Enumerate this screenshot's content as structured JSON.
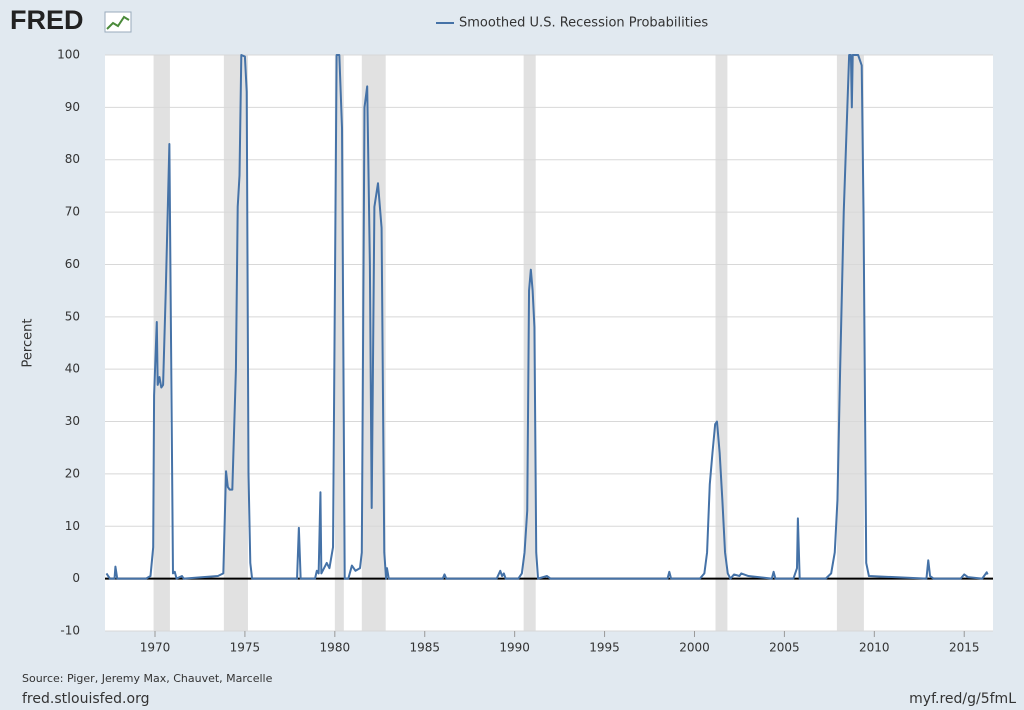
{
  "logo": "FRED",
  "chart_data": {
    "type": "line",
    "y_label": "Percent",
    "source": "Source: Piger, Jeremy Max, Chauvet, Marcelle",
    "legend": "top",
    "grid": true,
    "x": [
      1967.3,
      1967.5,
      1967.75,
      1967.8,
      1967.9,
      1969.5,
      1969.75,
      1969.9,
      1969.95,
      1970.1,
      1970.15,
      1970.25,
      1970.35,
      1970.45,
      1970.6,
      1970.8,
      1971.0,
      1971.1,
      1971.2,
      1971.5,
      1971.6,
      1973.5,
      1973.8,
      1973.95,
      1974.05,
      1974.15,
      1974.3,
      1974.5,
      1974.6,
      1974.7,
      1974.8,
      1975.0,
      1975.1,
      1975.2,
      1975.3,
      1975.4,
      1977.9,
      1978.0,
      1978.1,
      1978.9,
      1979.0,
      1979.1,
      1979.2,
      1979.25,
      1979.4,
      1979.55,
      1979.7,
      1979.9,
      1980.1,
      1980.25,
      1980.4,
      1980.55,
      1980.75,
      1980.95,
      1981.05,
      1981.15,
      1981.4,
      1981.5,
      1981.65,
      1981.8,
      1981.95,
      1982.05,
      1982.2,
      1982.4,
      1982.6,
      1982.75,
      1982.85,
      1982.9,
      1983.0,
      1986.0,
      1986.1,
      1986.2,
      1989.0,
      1989.2,
      1989.3,
      1989.4,
      1989.5,
      1990.2,
      1990.4,
      1990.55,
      1990.7,
      1990.8,
      1990.9,
      1991.0,
      1991.1,
      1991.2,
      1991.3,
      1991.8,
      1992.0,
      1998.5,
      1998.6,
      1998.7,
      2000.3,
      2000.55,
      2000.7,
      2000.85,
      2001.0,
      2001.15,
      2001.25,
      2001.4,
      2001.55,
      2001.7,
      2001.85,
      2002.0,
      2002.2,
      2002.5,
      2002.6,
      2003.0,
      2004.3,
      2004.4,
      2004.5,
      2005.5,
      2005.7,
      2005.75,
      2005.85,
      2007.3,
      2007.6,
      2007.8,
      2007.95,
      2008.1,
      2008.3,
      2008.5,
      2008.6,
      2008.7,
      2008.75,
      2008.8,
      2009.1,
      2009.3,
      2009.4,
      2009.55,
      2009.7,
      2012.9,
      2013.0,
      2013.1,
      2013.3,
      2014.8,
      2015.0,
      2015.2,
      2016.0,
      2016.25,
      2016.3
    ],
    "series": [
      {
        "name": "Smoothed U.S. Recession Probabilities",
        "color": "#4572a7",
        "values": [
          1,
          0,
          0,
          2.3,
          0,
          0,
          0.5,
          6,
          35,
          49,
          37,
          38.5,
          36.5,
          37,
          55,
          83,
          1,
          1.3,
          0,
          0.5,
          0,
          0.5,
          1,
          20.5,
          17.5,
          17,
          17,
          40,
          71,
          77,
          100,
          99.7,
          93,
          20,
          3,
          0,
          0,
          9.7,
          0,
          0,
          1.5,
          1,
          16.5,
          1,
          2,
          3,
          2,
          6,
          100,
          100,
          86,
          0,
          0,
          2.5,
          2,
          1.5,
          2,
          5,
          90,
          94,
          60,
          13.5,
          71,
          75.5,
          67,
          5,
          0,
          2,
          0,
          0,
          0.8,
          0,
          0,
          1.5,
          0.5,
          1,
          0,
          0,
          1,
          5,
          13,
          55,
          59,
          55,
          48,
          5,
          0,
          0.5,
          0,
          0,
          1.3,
          0,
          0,
          1,
          5,
          18,
          24,
          29.5,
          30,
          24,
          15,
          5,
          1,
          0,
          0.8,
          0.5,
          1,
          0.5,
          0,
          1.3,
          0,
          0,
          2,
          11.5,
          0,
          0,
          1,
          5,
          15,
          40,
          70,
          90,
          100,
          100,
          90,
          100,
          100,
          98,
          70,
          3,
          0.5,
          0,
          3.5,
          0.5,
          0,
          0,
          0.8,
          0.3,
          0,
          1.2,
          0.8
        ]
      }
    ],
    "recessions": [
      [
        1969.92,
        1970.83
      ],
      [
        1973.83,
        1975.17
      ],
      [
        1980.0,
        1980.5
      ],
      [
        1981.5,
        1982.83
      ],
      [
        1990.5,
        1991.17
      ],
      [
        2001.17,
        2001.83
      ],
      [
        2007.92,
        2009.42
      ]
    ],
    "recession_color": "#e1e1e1",
    "xlim": [
      1967.22,
      2016.6
    ],
    "xticks": [
      1970,
      1975,
      1980,
      1985,
      1990,
      1995,
      2000,
      2005,
      2010,
      2015
    ],
    "ylim": [
      -10,
      100
    ],
    "yticks": [
      -10,
      0,
      10,
      20,
      30,
      40,
      50,
      60,
      70,
      80,
      90,
      100
    ]
  },
  "footer": {
    "site": "fred.stlouisfed.org",
    "short_url": "myf.red/g/5fmL"
  }
}
